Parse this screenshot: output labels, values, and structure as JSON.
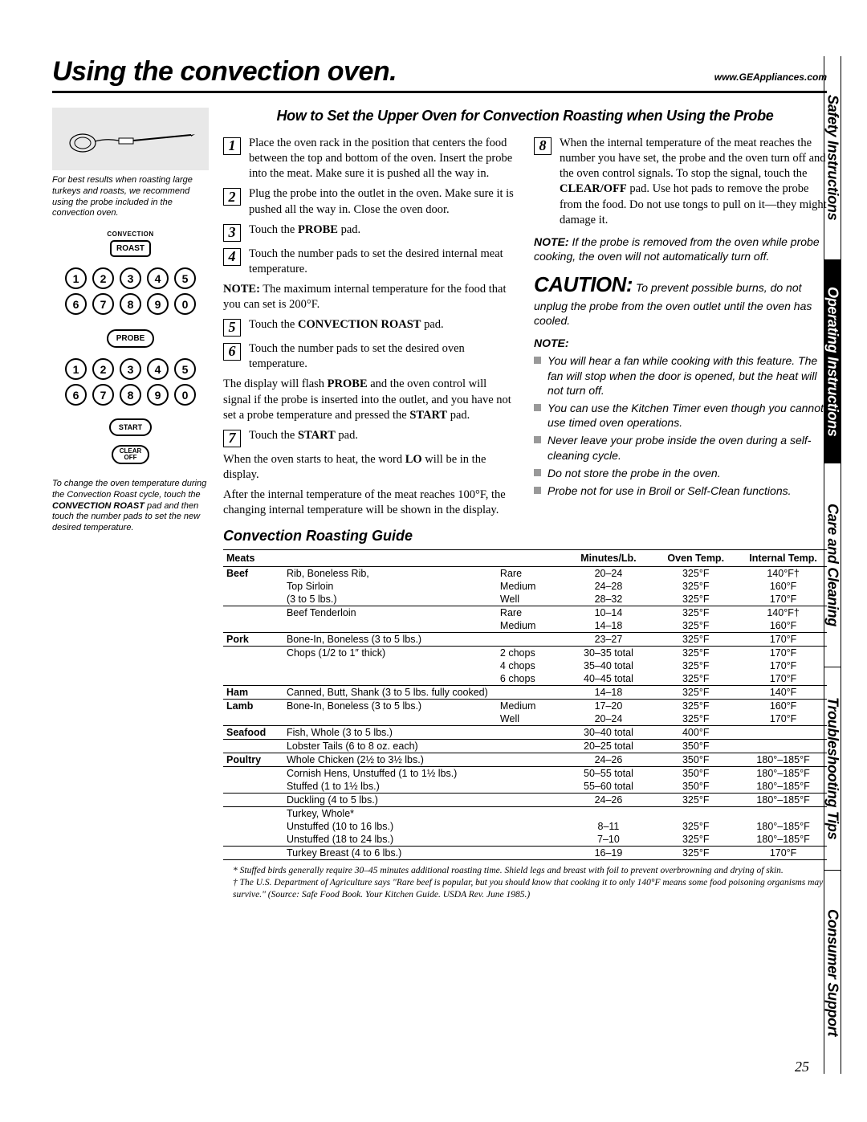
{
  "header": {
    "title": "Using the convection oven.",
    "url": "www.GEAppliances.com"
  },
  "subheading": "How to Set the Upper Oven for Convection Roasting when Using the Probe",
  "left": {
    "caption1": "For best results when roasting large turkeys and roasts, we recommend using the probe included in the convection oven.",
    "convection": "CONVECTION",
    "roast": "ROAST",
    "probe": "PROBE",
    "start": "START",
    "clear": "CLEAR",
    "off": "OFF",
    "caption2_a": "To change the oven temperature during the Convection Roast cycle, touch the ",
    "caption2_b": "CONVECTION ROAST",
    "caption2_c": " pad and then touch the number pads to set the new desired temperature."
  },
  "steps": {
    "s1": "Place the oven rack in the position that centers the food between the top and bottom of the oven. Insert the probe into the meat. Make sure it is pushed all the way in.",
    "s2": "Plug the probe into the outlet in the oven. Make sure it is pushed all the way in. Close the oven door.",
    "s3a": "Touch the ",
    "s3b": "PROBE",
    "s3c": " pad.",
    "s4": "Touch the number pads to set the desired internal meat temperature.",
    "note_max_a": "NOTE:",
    "note_max_b": " The maximum internal temperature for the food that you can set is 200°F.",
    "s5a": "Touch the ",
    "s5b": "CONVECTION ROAST",
    "s5c": " pad.",
    "s6": "Touch the number pads to set the desired oven temperature.",
    "disp_a": "The display will flash ",
    "disp_b": "PROBE",
    "disp_c": " and the oven control will signal if the probe is inserted into the outlet, and you have not set a probe temperature and pressed the ",
    "disp_d": "START",
    "disp_e": " pad.",
    "s7a": "Touch the ",
    "s7b": "START",
    "s7c": " pad.",
    "heat_a": "When the oven starts to heat, the word ",
    "heat_b": "LO",
    "heat_c": " will be in the display.",
    "after": "After the internal temperature of the meat reaches 100°F, the changing internal temperature will be shown in the display.",
    "s8a": "When the internal temperature of the meat reaches the number you have set, the probe and the oven turn off and the oven control signals. To stop the signal, touch the ",
    "s8b": "CLEAR/OFF",
    "s8c": " pad. Use hot pads to remove the probe from the food. Do not use tongs to pull on it—they might damage it.",
    "note_remove_a": "NOTE:",
    "note_remove_b": " If the probe is removed from the oven while probe cooking, the oven will not automatically turn off.",
    "caution_hd": "CAUTION:",
    "caution_txt": " To prevent possible burns, do not unplug the probe from the oven outlet until the oven has cooled.",
    "note_hd": "NOTE:",
    "b1": "You will hear a fan while cooking with this feature. The fan will stop when the door is opened, but the heat will not turn off.",
    "b2": "You can use the Kitchen Timer even though you cannot use timed oven operations.",
    "b3": "Never leave your probe inside the oven during a self-cleaning cycle.",
    "b4": "Do not store the probe in the oven.",
    "b5": "Probe not for use in Broil or Self-Clean functions."
  },
  "guide_title": "Convection Roasting Guide",
  "table": {
    "headers": [
      "Meats",
      "",
      "",
      "Minutes/Lb.",
      "Oven Temp.",
      "Internal Temp."
    ],
    "rows": [
      {
        "sep": true,
        "cat": "Beef",
        "c1": "Rib, Boneless Rib,",
        "c2": "Rare",
        "c3": "20–24",
        "c4": "325°F",
        "c5": "140°F†"
      },
      {
        "c1": "Top Sirloin",
        "c2": "Medium",
        "c3": "24–28",
        "c4": "325°F",
        "c5": "160°F"
      },
      {
        "c1": "(3 to 5 lbs.)",
        "c2": "Well",
        "c3": "28–32",
        "c4": "325°F",
        "c5": "170°F"
      },
      {
        "sep": true,
        "c1": "Beef Tenderloin",
        "c2": "Rare",
        "c3": "10–14",
        "c4": "325°F",
        "c5": "140°F†"
      },
      {
        "c1": "",
        "c2": "Medium",
        "c3": "14–18",
        "c4": "325°F",
        "c5": "160°F"
      },
      {
        "sep": true,
        "cat": "Pork",
        "c1": "Bone-In, Boneless (3 to 5 lbs.)",
        "c2": "",
        "c3": "23–27",
        "c4": "325°F",
        "c5": "170°F"
      },
      {
        "sep": true,
        "c1": "Chops (1/2 to 1″ thick)",
        "c2": "2 chops",
        "c3": "30–35 total",
        "c4": "325°F",
        "c5": "170°F"
      },
      {
        "c1": "",
        "c2": "4 chops",
        "c3": "35–40 total",
        "c4": "325°F",
        "c5": "170°F"
      },
      {
        "c1": "",
        "c2": "6 chops",
        "c3": "40–45 total",
        "c4": "325°F",
        "c5": "170°F"
      },
      {
        "sep": true,
        "cat": "Ham",
        "c1": "Canned, Butt, Shank (3 to 5 lbs. fully cooked)",
        "c2": "",
        "c3": "14–18",
        "c4": "325°F",
        "c5": "140°F"
      },
      {
        "sep": true,
        "cat": "Lamb",
        "c1": "Bone-In, Boneless (3 to 5 lbs.)",
        "c2": "Medium",
        "c3": "17–20",
        "c4": "325°F",
        "c5": "160°F"
      },
      {
        "c1": "",
        "c2": "Well",
        "c3": "20–24",
        "c4": "325°F",
        "c5": "170°F"
      },
      {
        "sep": true,
        "cat": "Seafood",
        "c1": "Fish, Whole (3 to 5 lbs.)",
        "c2": "",
        "c3": "30–40 total",
        "c4": "400°F",
        "c5": ""
      },
      {
        "sep": true,
        "c1": "Lobster Tails (6 to 8 oz. each)",
        "c2": "",
        "c3": "20–25 total",
        "c4": "350°F",
        "c5": ""
      },
      {
        "sep": true,
        "cat": "Poultry",
        "c1": "Whole Chicken (2½ to 3½ lbs.)",
        "c2": "",
        "c3": "24–26",
        "c4": "350°F",
        "c5": "180°–185°F"
      },
      {
        "sep": true,
        "c1": "Cornish Hens, Unstuffed (1 to 1½ lbs.)",
        "c2": "",
        "c3": "50–55 total",
        "c4": "350°F",
        "c5": "180°–185°F"
      },
      {
        "c1": "Stuffed (1 to 1½ lbs.)",
        "c2": "",
        "c3": "55–60 total",
        "c4": "350°F",
        "c5": "180°–185°F"
      },
      {
        "sep": true,
        "c1": "Duckling (4 to 5 lbs.)",
        "c2": "",
        "c3": "24–26",
        "c4": "325°F",
        "c5": "180°–185°F"
      },
      {
        "sep": true,
        "c1": "Turkey, Whole*",
        "c2": "",
        "c3": "",
        "c4": "",
        "c5": ""
      },
      {
        "c1": "Unstuffed (10 to 16 lbs.)",
        "c2": "",
        "c3": "8–11",
        "c4": "325°F",
        "c5": "180°–185°F"
      },
      {
        "c1": "Unstuffed (18 to 24 lbs.)",
        "c2": "",
        "c3": "7–10",
        "c4": "325°F",
        "c5": "180°–185°F"
      },
      {
        "sep": true,
        "c1": "Turkey Breast (4 to 6 lbs.)",
        "c2": "",
        "c3": "16–19",
        "c4": "325°F",
        "c5": "170°F"
      }
    ]
  },
  "footnotes": {
    "f1": "* Stuffed birds generally require 30–45 minutes additional roasting time. Shield legs and breast with foil to prevent overbrowning and drying of skin.",
    "f2": "† The U.S. Department of Agriculture says \"Rare beef is popular, but you should know that cooking it to only 140°F means some food poisoning organisms may survive.\" (Source: Safe Food Book. Your Kitchen Guide. USDA Rev. June 1985.)"
  },
  "page_num": "25",
  "tabs": [
    "Safety Instructions",
    "Operating Instructions",
    "Care and Cleaning",
    "Troubleshooting Tips",
    "Consumer Support"
  ]
}
